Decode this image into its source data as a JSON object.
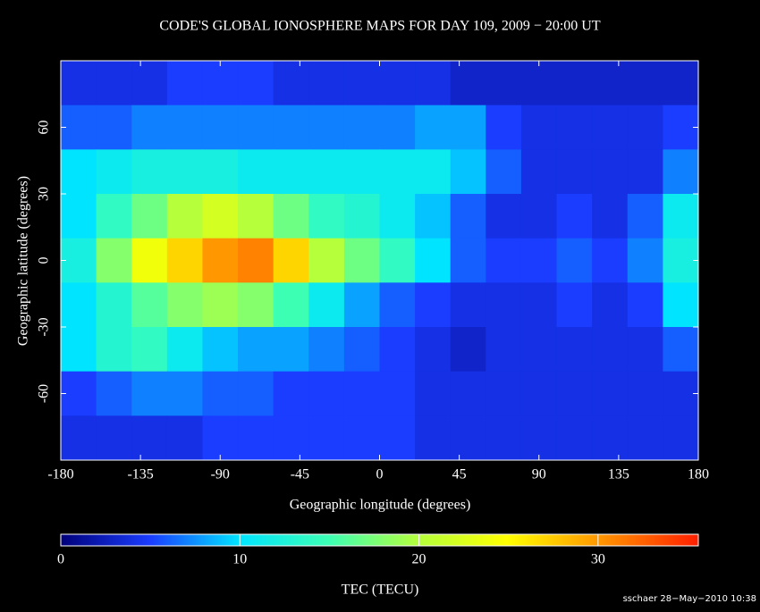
{
  "chart_data": {
    "type": "heatmap",
    "title": "CODE'S GLOBAL IONOSPHERE MAPS FOR DAY 109, 2009 − 20:00 UT",
    "x_label": "Geographic longitude (degrees)",
    "y_label": "Geographic latitude (degrees)",
    "colorbar_label": "TEC (TECU)",
    "footer": "sschaer 28−May−2010 10:38",
    "xlim": [
      -180,
      180
    ],
    "ylim": [
      -90,
      90
    ],
    "xticks": [
      -180,
      -135,
      -90,
      -45,
      0,
      45,
      90,
      135,
      180
    ],
    "yticks": [
      -60,
      -30,
      0,
      30,
      60
    ],
    "clim": [
      0,
      35.6
    ],
    "cticks": [
      0,
      10,
      20,
      30
    ],
    "x": [
      -170,
      -150,
      -130,
      -110,
      -90,
      -70,
      -50,
      -30,
      -10,
      10,
      30,
      50,
      70,
      90,
      110,
      130,
      150,
      170
    ],
    "y": [
      80,
      60,
      40,
      20,
      0,
      -20,
      -40,
      -60,
      -80
    ],
    "values": [
      [
        4,
        4,
        4,
        5,
        5,
        5,
        4,
        4,
        4,
        4,
        4,
        3,
        3,
        3,
        3,
        3,
        3,
        3
      ],
      [
        6,
        6,
        7,
        7,
        7,
        7,
        7,
        7,
        7,
        7,
        8,
        8,
        5,
        4,
        4,
        4,
        4,
        5
      ],
      [
        10,
        11,
        12,
        12,
        12,
        11,
        11,
        11,
        11,
        11,
        11,
        9,
        6,
        4,
        4,
        4,
        4,
        7
      ],
      [
        10,
        14,
        17,
        20,
        22,
        20,
        17,
        14,
        13,
        11,
        9,
        6,
        4,
        4,
        5,
        4,
        6,
        11
      ],
      [
        12,
        18,
        24,
        27,
        30,
        31,
        27,
        20,
        17,
        14,
        10,
        6,
        5,
        5,
        6,
        5,
        7,
        12
      ],
      [
        10,
        13,
        16,
        18,
        19,
        18,
        15,
        11,
        8,
        6,
        5,
        4,
        4,
        4,
        5,
        4,
        5,
        10
      ],
      [
        10,
        13,
        14,
        11,
        9,
        8,
        8,
        7,
        6,
        5,
        4,
        3,
        4,
        4,
        4,
        4,
        4,
        6
      ],
      [
        5,
        6,
        7,
        7,
        6,
        6,
        5,
        5,
        5,
        5,
        4,
        4,
        4,
        4,
        4,
        4,
        4,
        4
      ],
      [
        4,
        4,
        4,
        4,
        5,
        5,
        5,
        5,
        5,
        5,
        4,
        4,
        4,
        4,
        4,
        4,
        4,
        4
      ]
    ]
  }
}
